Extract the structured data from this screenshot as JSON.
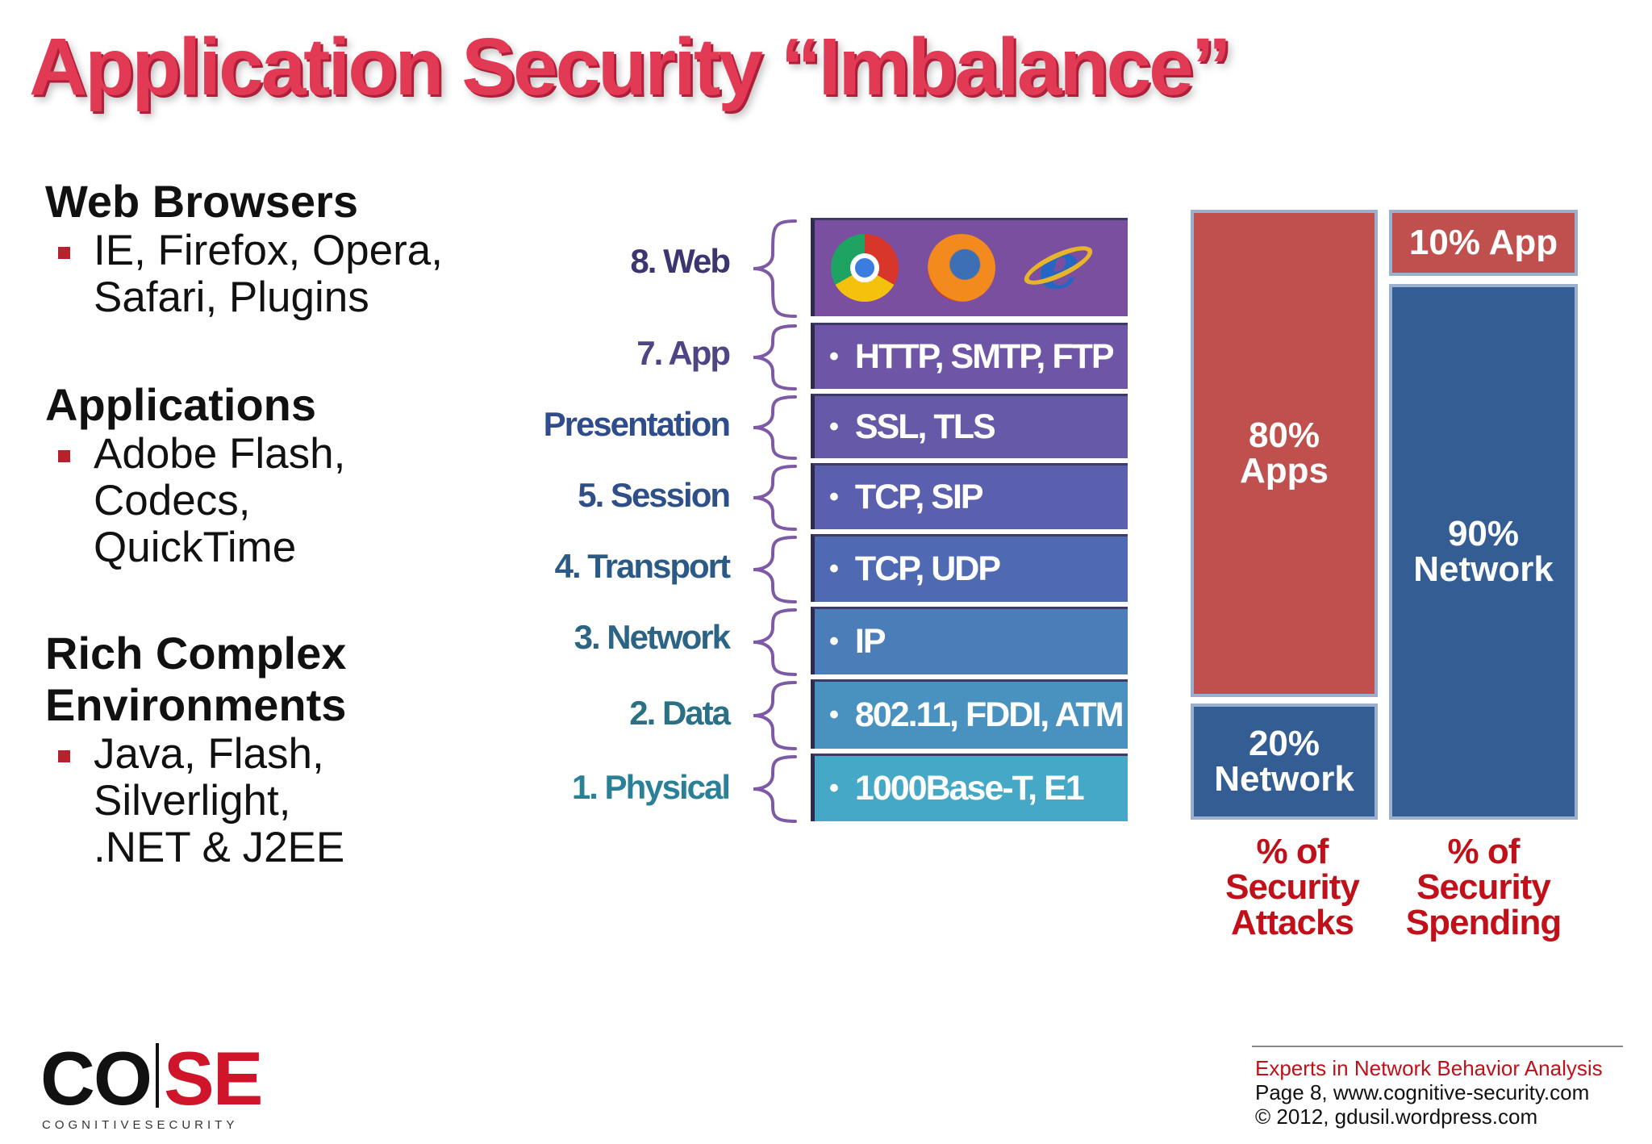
{
  "title": "Application Security “Imbalance”",
  "left_sections": [
    {
      "heading": "Web Browsers",
      "items": [
        "IE, Firefox, Opera, Safari, Plugins"
      ]
    },
    {
      "heading": "Applications",
      "items": [
        "Adobe Flash, Codecs, QuickTime"
      ]
    },
    {
      "heading": "Rich Complex Environments",
      "items": [
        "Java, Flash, Silverlight, .NET & J2EE"
      ]
    }
  ],
  "osi_layers": [
    {
      "label": "8. Web",
      "content": "",
      "icons": [
        "chrome-icon",
        "firefox-icon",
        "internet-explorer-icon"
      ],
      "label_color": "#3b3570",
      "box_color": "#7a4fa0"
    },
    {
      "label": "7. App",
      "content": "HTTP, SMTP,  FTP",
      "label_color": "#4e4585",
      "box_color": "#6e55a6"
    },
    {
      "label": "Presentation",
      "content": "SSL, TLS",
      "label_color": "#2f4d8c",
      "box_color": "#6559a8"
    },
    {
      "label": "5. Session",
      "content": "TCP, SIP",
      "label_color": "#2e4f88",
      "box_color": "#5a5fae"
    },
    {
      "label": "4. Transport",
      "content": "TCP, UDP",
      "label_color": "#2c5a86",
      "box_color": "#4f6ab2"
    },
    {
      "label": "3. Network",
      "content": "IP",
      "label_color": "#2b6484",
      "box_color": "#4b7db8"
    },
    {
      "label": "2. Data",
      "content": "802.11, FDDI, ATM",
      "label_color": "#2a7086",
      "box_color": "#4992bf"
    },
    {
      "label": "1. Physical",
      "content": "1000Base-T,  E1",
      "label_color": "#2a8096",
      "box_color": "#45a8c6"
    }
  ],
  "bars": {
    "attacks": {
      "apps_percent": 80,
      "network_percent": 20,
      "apps_label": [
        "80%",
        "Apps"
      ],
      "network_label": [
        "20%",
        "Network"
      ],
      "caption": [
        "% of",
        "Security",
        "Attacks"
      ]
    },
    "spending": {
      "app_percent": 10,
      "network_percent": 90,
      "app_label": "10% App",
      "network_label": [
        "90%",
        "Network"
      ],
      "caption": [
        "% of",
        "Security",
        "Spending"
      ]
    },
    "colors": {
      "apps": "#c0504d",
      "network": "#345e93"
    }
  },
  "logo": {
    "left": "CO",
    "right": "SE",
    "subtitle": "COGNITIVESECURITY"
  },
  "footer": {
    "line1": "Experts in Network Behavior Analysis",
    "line2": "Page 8, www.cognitive-security.com",
    "line3": "© 2012, gdusil.wordpress.com",
    "accent_color": "#c0101a"
  }
}
